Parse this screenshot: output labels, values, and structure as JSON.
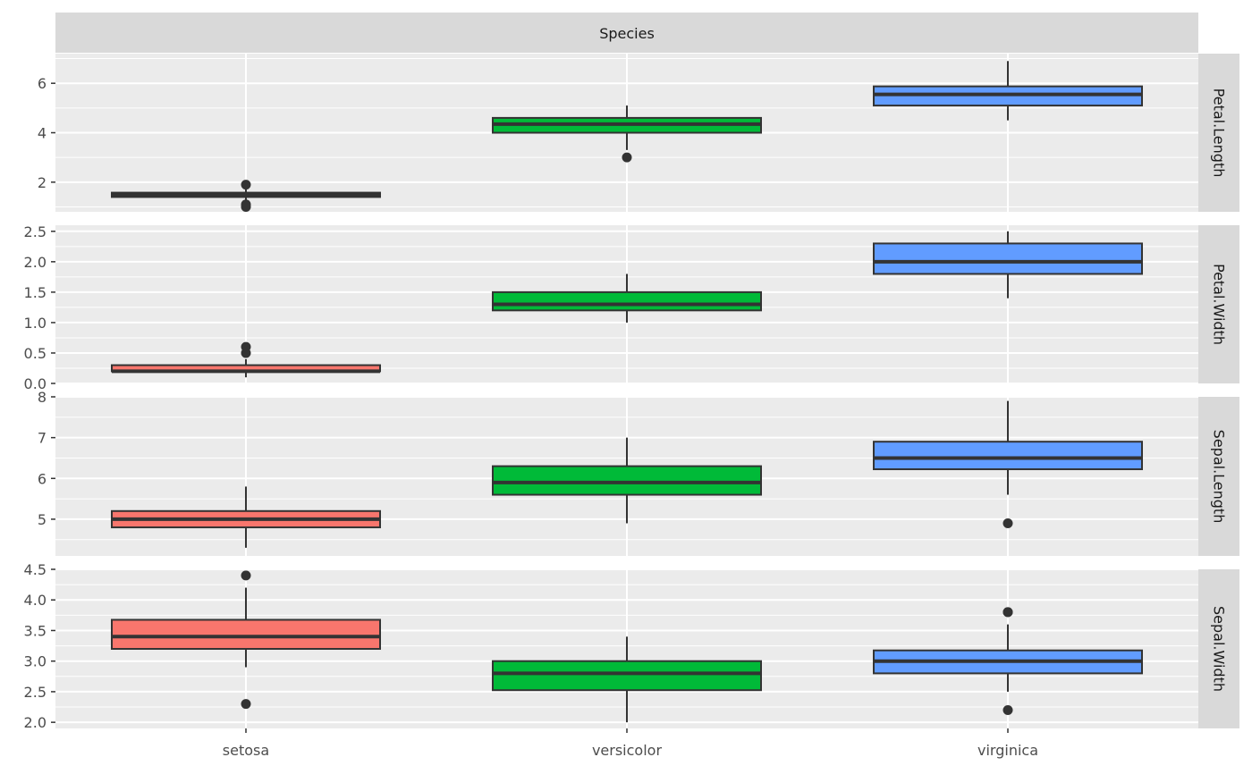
{
  "chart_data": {
    "type": "boxplot",
    "facet_title": "Species",
    "categories": [
      "setosa",
      "versicolor",
      "virginica"
    ],
    "colors": {
      "setosa": "#F8766D",
      "versicolor": "#00BA38",
      "virginica": "#619CFF",
      "panel_bg": "#EBEBEB",
      "strip_bg": "#D9D9D9",
      "grid": "#FFFFFF",
      "box_line": "#333333"
    },
    "grid": true,
    "legend": "none",
    "panels": [
      {
        "label": "Petal.Length",
        "ylim": [
          0.8,
          7.2
        ],
        "yticks": [
          2,
          4,
          6
        ],
        "tick_labels": [
          "2",
          "4",
          "6"
        ],
        "boxes": [
          {
            "category": "setosa",
            "whisker_low": 1.1,
            "q1": 1.4,
            "median": 1.5,
            "q3": 1.575,
            "whisker_high": 1.9,
            "outliers": [
              1.0,
              1.1,
              1.9
            ]
          },
          {
            "category": "versicolor",
            "whisker_low": 3.3,
            "q1": 4.0,
            "median": 4.35,
            "q3": 4.6,
            "whisker_high": 5.1,
            "outliers": [
              3.0
            ]
          },
          {
            "category": "virginica",
            "whisker_low": 4.5,
            "q1": 5.1,
            "median": 5.55,
            "q3": 5.875,
            "whisker_high": 6.9,
            "outliers": []
          }
        ]
      },
      {
        "label": "Petal.Width",
        "ylim": [
          0.0,
          2.6
        ],
        "yticks": [
          0.0,
          0.5,
          1.0,
          1.5,
          2.0,
          2.5
        ],
        "tick_labels": [
          "0.0",
          "0.5",
          "1.0",
          "1.5",
          "2.0",
          "2.5"
        ],
        "boxes": [
          {
            "category": "setosa",
            "whisker_low": 0.1,
            "q1": 0.2,
            "median": 0.2,
            "q3": 0.3,
            "whisker_high": 0.4,
            "outliers": [
              0.5,
              0.6
            ]
          },
          {
            "category": "versicolor",
            "whisker_low": 1.0,
            "q1": 1.2,
            "median": 1.3,
            "q3": 1.5,
            "whisker_high": 1.8,
            "outliers": []
          },
          {
            "category": "virginica",
            "whisker_low": 1.4,
            "q1": 1.8,
            "median": 2.0,
            "q3": 2.3,
            "whisker_high": 2.5,
            "outliers": []
          }
        ]
      },
      {
        "label": "Sepal.Length",
        "ylim": [
          4.1,
          8.0
        ],
        "yticks": [
          5,
          6,
          7,
          8
        ],
        "tick_labels": [
          "5",
          "6",
          "7",
          "8"
        ],
        "boxes": [
          {
            "category": "setosa",
            "whisker_low": 4.3,
            "q1": 4.8,
            "median": 5.0,
            "q3": 5.2,
            "whisker_high": 5.8,
            "outliers": []
          },
          {
            "category": "versicolor",
            "whisker_low": 4.9,
            "q1": 5.6,
            "median": 5.9,
            "q3": 6.3,
            "whisker_high": 7.0,
            "outliers": []
          },
          {
            "category": "virginica",
            "whisker_low": 5.6,
            "q1": 6.225,
            "median": 6.5,
            "q3": 6.9,
            "whisker_high": 7.9,
            "outliers": [
              4.9
            ]
          }
        ]
      },
      {
        "label": "Sepal.Width",
        "ylim": [
          1.9,
          4.5
        ],
        "yticks": [
          2.0,
          2.5,
          3.0,
          3.5,
          4.0,
          4.5
        ],
        "tick_labels": [
          "2.0",
          "2.5",
          "3.0",
          "3.5",
          "4.0",
          "4.5"
        ],
        "boxes": [
          {
            "category": "setosa",
            "whisker_low": 2.9,
            "q1": 3.2,
            "median": 3.4,
            "q3": 3.675,
            "whisker_high": 4.2,
            "outliers": [
              2.3,
              4.4
            ]
          },
          {
            "category": "versicolor",
            "whisker_low": 2.0,
            "q1": 2.525,
            "median": 2.8,
            "q3": 3.0,
            "whisker_high": 3.4,
            "outliers": []
          },
          {
            "category": "virginica",
            "whisker_low": 2.5,
            "q1": 2.8,
            "median": 3.0,
            "q3": 3.175,
            "whisker_high": 3.6,
            "outliers": [
              2.2,
              3.8,
              3.8
            ]
          }
        ]
      }
    ]
  }
}
